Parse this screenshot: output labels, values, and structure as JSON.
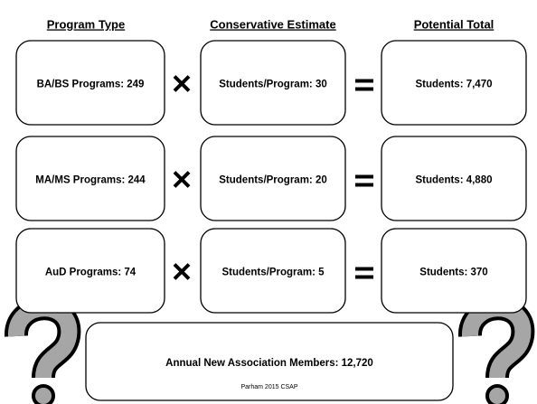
{
  "headers": [
    "Program Type",
    "Conservative Estimate",
    "Potential Total"
  ],
  "rows": [
    {
      "program": "BA/BS Programs: 249",
      "estimate": "Students/Program: 30",
      "total": "Students: 7,470"
    },
    {
      "program": "MA/MS Programs: 244",
      "estimate": "Students/Program: 20",
      "total": "Students: 4,880"
    },
    {
      "program": "AuD Programs: 74",
      "estimate": "Students/Program: 5",
      "total": "Students: 370"
    }
  ],
  "summary": "Annual New Association Members: 12,720",
  "footer": "Parham 2015 CSAP"
}
